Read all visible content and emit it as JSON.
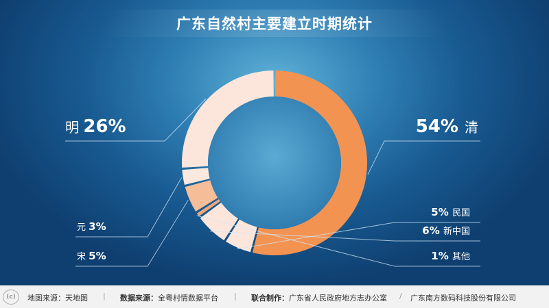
{
  "title": "广东自然村主要建立时期统计",
  "chart_data": {
    "type": "pie",
    "title": "广东自然村主要建立时期统计",
    "unit": "%",
    "slices": [
      {
        "label": "清",
        "value": 54,
        "color": "#f39352"
      },
      {
        "label": "民国",
        "value": 5,
        "color": "#fce6dc"
      },
      {
        "label": "新中国",
        "value": 6,
        "color": "#fce6dc"
      },
      {
        "label": "其他",
        "value": 1,
        "color": "#f0a77c"
      },
      {
        "label": "宋",
        "value": 5,
        "color": "#f5bd98"
      },
      {
        "label": "元",
        "value": 3,
        "color": "#fbe9df"
      },
      {
        "label": "明",
        "value": 26,
        "color": "#fce6dc"
      }
    ]
  },
  "footer": {
    "logo": "(c)",
    "map_source": "地图来源：天地图",
    "data_label": "数据来源：",
    "data_value": "全粤村情数据平台",
    "joint_label": "联合制作：",
    "joint_value_1": "广东省人民政府地方志办公室",
    "slash": "/",
    "joint_value_2": "广东南方数码科技股份有限公司",
    "separator": "|"
  }
}
